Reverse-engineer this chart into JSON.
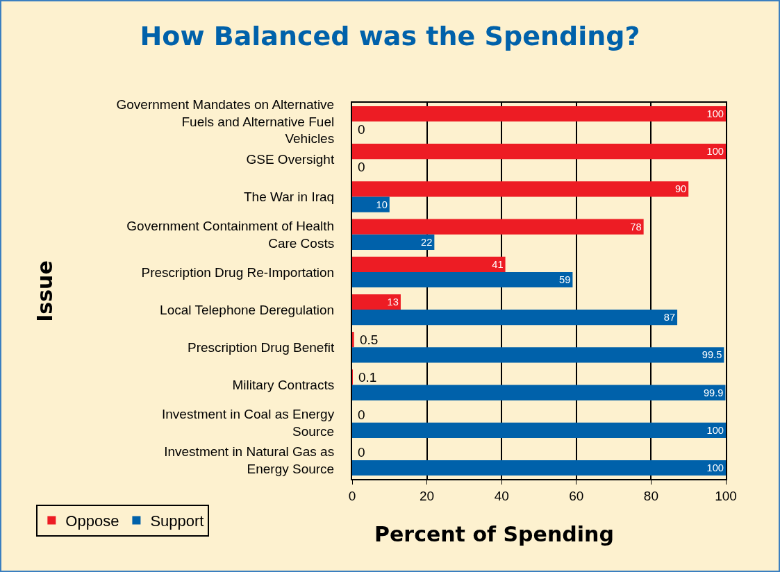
{
  "chart_data": {
    "type": "bar",
    "orientation": "horizontal",
    "title": "How Balanced was the Spending?",
    "xlabel": "Percent of Spending",
    "ylabel": "Issue",
    "categories": [
      "Government Mandates on Alternative Fuels and Alternative Fuel Vehicles",
      "GSE Oversight",
      "The War in Iraq",
      "Government Containment of Health Care Costs",
      "Prescription Drug Re-Importation",
      "Local Telephone Deregulation",
      "Prescription Drug Benefit",
      "Military Contracts",
      "Investment in Coal as Energy Source",
      "Investment in Natural Gas as Energy Source"
    ],
    "series": [
      {
        "name": "Oppose",
        "color": "#ed1c24",
        "values": [
          100,
          100,
          90,
          78,
          41,
          13,
          0.5,
          0.1,
          0,
          0
        ]
      },
      {
        "name": "Support",
        "color": "#0061aa",
        "values": [
          0,
          0,
          10,
          22,
          59,
          87,
          99.5,
          99.9,
          100,
          100
        ]
      }
    ],
    "xlim": [
      0,
      100
    ],
    "xticks": [
      0,
      20,
      40,
      60,
      80,
      100
    ],
    "grid": "x",
    "legend": "bottom left",
    "data_labels": true
  }
}
